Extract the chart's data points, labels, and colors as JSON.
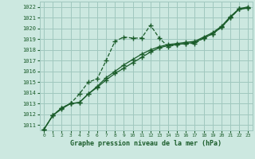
{
  "title": "Graphe pression niveau de la mer (hPa)",
  "background_color": "#cce8e0",
  "grid_color": "#a0c8be",
  "line_color": "#1a5c2a",
  "xlim": [
    -0.5,
    23.5
  ],
  "ylim": [
    1010.5,
    1022.5
  ],
  "xticks": [
    0,
    1,
    2,
    3,
    4,
    5,
    6,
    7,
    8,
    9,
    10,
    11,
    12,
    13,
    14,
    15,
    16,
    17,
    18,
    19,
    20,
    21,
    22,
    23
  ],
  "yticks": [
    1011,
    1012,
    1013,
    1014,
    1015,
    1016,
    1017,
    1018,
    1019,
    1020,
    1021,
    1022
  ],
  "series1_x": [
    0,
    1,
    2,
    3,
    4,
    5,
    6,
    7,
    8,
    9,
    10,
    11,
    12,
    13,
    14,
    15,
    16,
    17,
    18,
    19,
    20,
    21,
    22,
    23
  ],
  "series1_y": [
    1010.6,
    1011.9,
    1012.6,
    1013.0,
    1013.9,
    1015.0,
    1015.3,
    1017.0,
    1018.8,
    1019.2,
    1019.1,
    1019.1,
    1020.3,
    1019.1,
    1018.3,
    1018.5,
    1018.6,
    1018.6,
    1019.1,
    1019.5,
    1020.1,
    1021.0,
    1021.8,
    1021.9
  ],
  "series2_x": [
    0,
    1,
    2,
    3,
    4,
    5,
    6,
    7,
    8,
    9,
    10,
    11,
    12,
    13,
    14,
    15,
    16,
    17,
    18,
    19,
    20,
    21,
    22,
    23
  ],
  "series2_y": [
    1010.6,
    1011.9,
    1012.6,
    1013.0,
    1013.1,
    1013.9,
    1014.5,
    1015.2,
    1015.8,
    1016.3,
    1016.8,
    1017.3,
    1017.8,
    1018.2,
    1018.4,
    1018.5,
    1018.6,
    1018.7,
    1019.1,
    1019.5,
    1020.1,
    1021.0,
    1021.8,
    1021.9
  ],
  "series3_x": [
    0,
    1,
    2,
    3,
    4,
    5,
    6,
    7,
    8,
    9,
    10,
    11,
    12,
    13,
    14,
    15,
    16,
    17,
    18,
    19,
    20,
    21,
    22,
    23
  ],
  "series3_y": [
    1010.6,
    1011.9,
    1012.5,
    1013.0,
    1013.1,
    1013.9,
    1014.6,
    1015.4,
    1016.0,
    1016.6,
    1017.1,
    1017.6,
    1018.0,
    1018.3,
    1018.5,
    1018.6,
    1018.7,
    1018.8,
    1019.2,
    1019.6,
    1020.2,
    1021.1,
    1021.85,
    1022.0
  ]
}
